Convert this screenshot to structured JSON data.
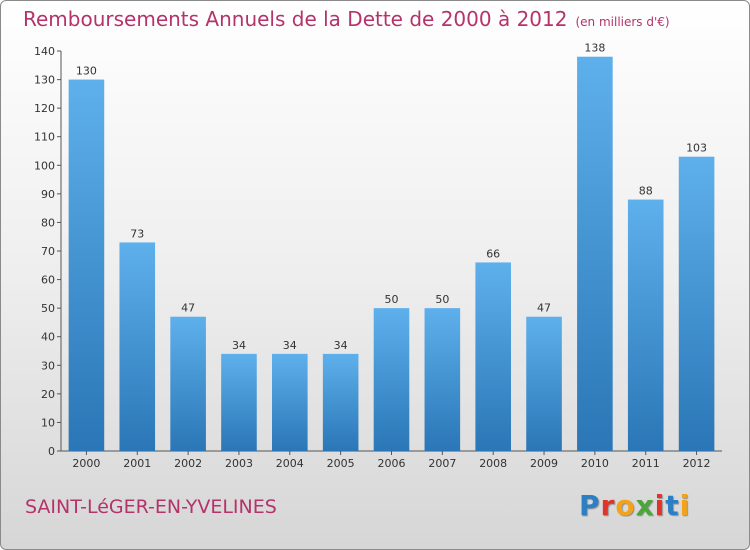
{
  "title": "Remboursements Annuels de la Dette de 2000 à 2012",
  "subtitle": "(en milliers d'€)",
  "commune": "SAINT-LéGER-EN-YVELINES",
  "logo": {
    "letters": [
      "P",
      "r",
      "o",
      "x",
      "i",
      "t",
      "i"
    ],
    "colors": [
      "#2b7fc4",
      "#e0332b",
      "#f2a31b",
      "#4aa63a",
      "#e0332b",
      "#2b7fc4",
      "#f2a31b"
    ]
  },
  "colors": {
    "bar_top": "#5eb0ec",
    "bar_bottom": "#2a76b6",
    "accent": "#b5336b"
  },
  "chart_data": {
    "type": "bar",
    "title": "Remboursements Annuels de la Dette de 2000 à 2012",
    "subtitle": "(en milliers d'€)",
    "xlabel": "",
    "ylabel": "",
    "categories": [
      "2000",
      "2001",
      "2002",
      "2003",
      "2004",
      "2005",
      "2006",
      "2007",
      "2008",
      "2009",
      "2010",
      "2011",
      "2012"
    ],
    "values": [
      130,
      73,
      47,
      34,
      34,
      34,
      50,
      50,
      66,
      47,
      138,
      88,
      103
    ],
    "ylim": [
      0,
      140
    ],
    "yticks": [
      0,
      10,
      20,
      30,
      40,
      50,
      60,
      70,
      80,
      90,
      100,
      110,
      120,
      130,
      140
    ],
    "grid": false,
    "legend": "none"
  }
}
